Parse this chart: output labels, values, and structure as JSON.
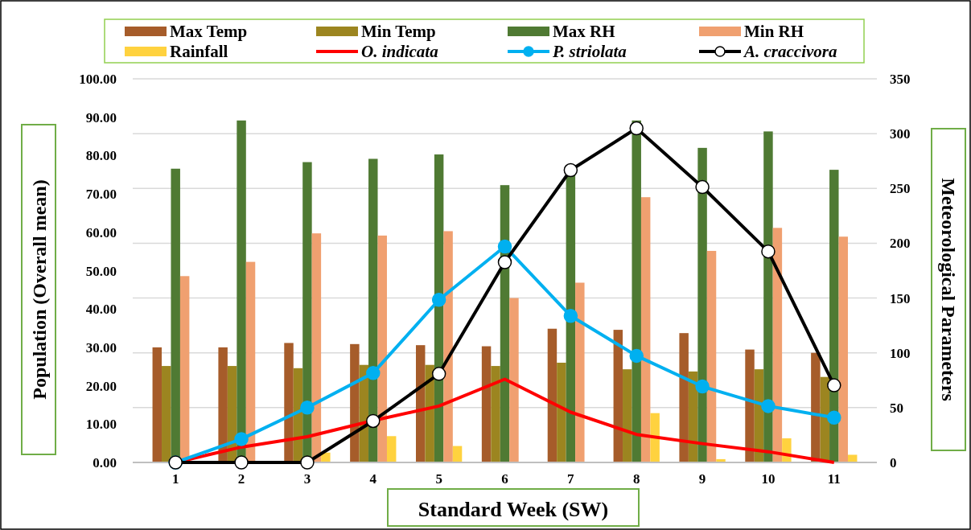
{
  "chart_data": {
    "type": "bar",
    "xlabel": "Standard Week (SW)",
    "ylabel": "Population (Overall mean)",
    "y2label": "Meteorological Parameters",
    "categories": [
      "1",
      "2",
      "3",
      "4",
      "5",
      "6",
      "7",
      "8",
      "9",
      "10",
      "11"
    ],
    "series": [
      {
        "name": "Max Temp",
        "axis": "y2",
        "color": "#a65c2a",
        "values": [
          105,
          105,
          109,
          108,
          107,
          106,
          122,
          121,
          118,
          103,
          100
        ]
      },
      {
        "name": "Min Temp",
        "axis": "y2",
        "color": "#9c8520",
        "values": [
          88,
          88,
          86,
          89,
          89,
          88,
          91,
          85,
          83,
          85,
          78
        ]
      },
      {
        "name": "Max RH",
        "axis": "y2",
        "color": "#4f7a33",
        "values": [
          268,
          312,
          274,
          277,
          281,
          253,
          262,
          312,
          287,
          302,
          267
        ]
      },
      {
        "name": "Min RH",
        "axis": "y2",
        "color": "#f0a070",
        "values": [
          170,
          183,
          209,
          207,
          211,
          150,
          164,
          242,
          193,
          214,
          206
        ]
      },
      {
        "name": "Rainfall",
        "axis": "y2",
        "color": "#ffd23f",
        "values": [
          0,
          0,
          9,
          24,
          15,
          0,
          0,
          45,
          3,
          22,
          7
        ]
      },
      {
        "name": "O. indicata",
        "type": "line",
        "color": "#ff0000",
        "marker": "none",
        "values": [
          0,
          4.0,
          6.7,
          10.9,
          14.7,
          21.7,
          13.1,
          7.3,
          4.9,
          2.8,
          0
        ]
      },
      {
        "name": "P. striolata",
        "type": "line",
        "color": "#00b0f0",
        "marker": "circle",
        "values": [
          0,
          6.1,
          14.3,
          23.3,
          42.4,
          56.3,
          38.2,
          27.8,
          19.8,
          14.7,
          11.7
        ]
      },
      {
        "name": "A. craccivora",
        "type": "line",
        "color": "#000000",
        "marker": "circle",
        "values": [
          0,
          0,
          0,
          10.8,
          23.1,
          52.2,
          76.2,
          87.1,
          71.8,
          55.0,
          20.1
        ]
      }
    ],
    "ylim": [
      0,
      100
    ],
    "yticks": [
      {
        "value": 0,
        "label": "0.00"
      },
      {
        "value": 10,
        "label": "10.00"
      },
      {
        "value": 20,
        "label": "20.00"
      },
      {
        "value": 30,
        "label": "30.00"
      },
      {
        "value": 40,
        "label": "40.00"
      },
      {
        "value": 50,
        "label": "50.00"
      },
      {
        "value": 60,
        "label": "60.00"
      },
      {
        "value": 70,
        "label": "70.00"
      },
      {
        "value": 80,
        "label": "80.00"
      },
      {
        "value": 90,
        "label": "90.00"
      },
      {
        "value": 100,
        "label": "100.00"
      }
    ],
    "y2lim": [
      0,
      350
    ],
    "y2ticks": [
      0,
      50,
      100,
      150,
      200,
      250,
      300,
      350
    ],
    "grid": true,
    "legend": "top"
  }
}
